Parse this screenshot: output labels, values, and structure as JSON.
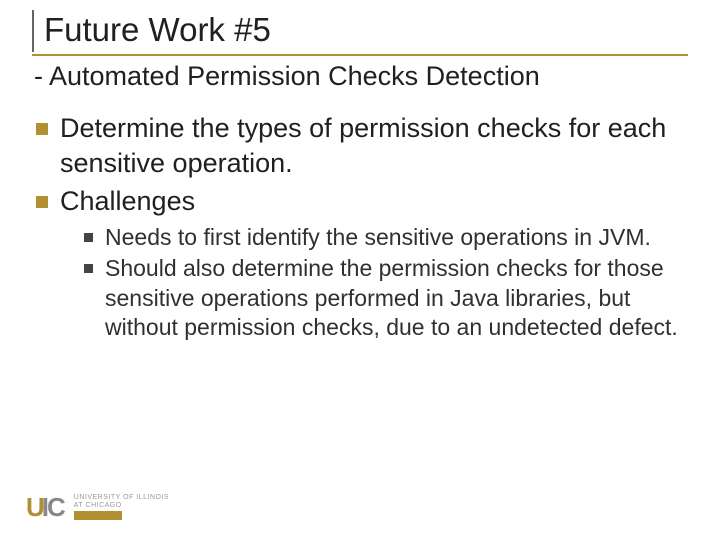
{
  "title": "Future Work #5",
  "subtitle": "- Automated Permission Checks Detection",
  "bullets": {
    "b1": "Determine the types of permission checks for each sensitive operation.",
    "b2": "Challenges",
    "sub1": "Needs to first identify the sensitive operations in JVM.",
    "sub2": "Should also determine the permission checks for those sensitive operations performed in Java libraries, but without permission checks, due to an undetected defect."
  },
  "logo": {
    "u": "U",
    "ic": "IC",
    "line1": "UNIVERSITY OF ILLINOIS",
    "line2": "AT CHICAGO"
  },
  "colors": {
    "accent": "#b09030",
    "text": "#202020",
    "subbullet": "#444444",
    "logo_gray": "#888888"
  },
  "typography": {
    "title_size": 33,
    "subtitle_size": 27,
    "lvl1_size": 27,
    "lvl2_size": 23
  }
}
